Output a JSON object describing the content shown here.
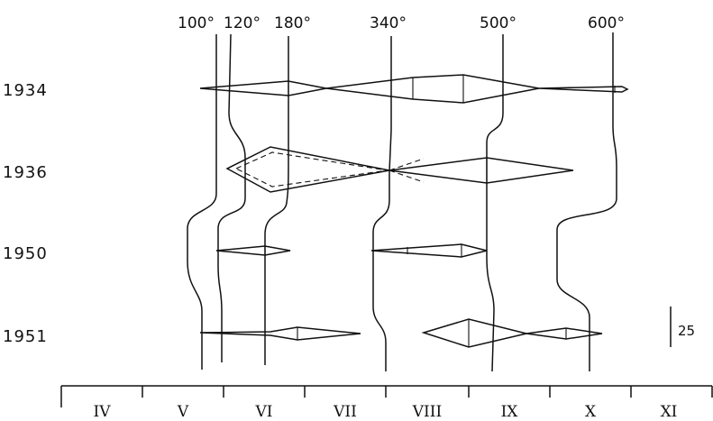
{
  "temperature_labels": [
    "100°",
    "120°",
    "180°",
    "340°",
    "500°",
    "600°"
  ],
  "years": [
    "1934",
    "1936",
    "1950",
    "1951"
  ],
  "months": [
    "IV",
    "V",
    "VI",
    "VII",
    "VIII",
    "IX",
    "X",
    "XI"
  ],
  "scale_label": "25"
}
